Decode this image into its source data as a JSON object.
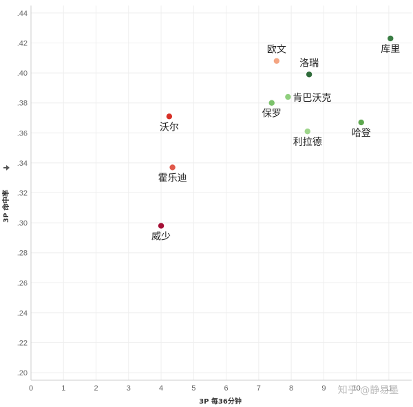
{
  "chart_data": {
    "type": "scatter",
    "xlabel": "3P 每36分钟",
    "ylabel": "3P 命中率",
    "xlim": [
      0,
      11.7
    ],
    "ylim": [
      0.195,
      0.445
    ],
    "x_ticks": [
      0,
      1,
      2,
      3,
      4,
      5,
      6,
      7,
      8,
      9,
      10,
      11
    ],
    "x_tick_labels": [
      "0",
      "1",
      "2",
      "3",
      "4",
      "5",
      "6",
      "7",
      "8",
      "9",
      "10",
      "11"
    ],
    "y_ticks": [
      0.2,
      0.22,
      0.24,
      0.26,
      0.28,
      0.3,
      0.32,
      0.34,
      0.36,
      0.38,
      0.4,
      0.42,
      0.44
    ],
    "y_tick_labels": [
      ".20",
      ".22",
      ".24",
      ".26",
      ".28",
      ".30",
      ".32",
      ".34",
      ".36",
      ".38",
      ".40",
      ".42",
      ".44"
    ],
    "grid": true,
    "points": [
      {
        "label": "库里",
        "x": 11.05,
        "y": 0.423,
        "color": "#3a7d44",
        "label_pos": "below"
      },
      {
        "label": "欧文",
        "x": 7.55,
        "y": 0.408,
        "color": "#f4a582",
        "label_pos": "above"
      },
      {
        "label": "洛瑞",
        "x": 8.55,
        "y": 0.399,
        "color": "#2f6b3a",
        "label_pos": "above"
      },
      {
        "label": "肯巴沃克",
        "x": 7.9,
        "y": 0.384,
        "color": "#8fcf7e",
        "label_pos": "right"
      },
      {
        "label": "保罗",
        "x": 7.4,
        "y": 0.38,
        "color": "#7cc26c",
        "label_pos": "below"
      },
      {
        "label": "哈登",
        "x": 10.15,
        "y": 0.367,
        "color": "#5ea84f",
        "label_pos": "below"
      },
      {
        "label": "利拉德",
        "x": 8.5,
        "y": 0.361,
        "color": "#9ed58b",
        "label_pos": "below"
      },
      {
        "label": "沃尔",
        "x": 4.25,
        "y": 0.371,
        "color": "#d73027",
        "label_pos": "below"
      },
      {
        "label": "霍乐迪",
        "x": 4.35,
        "y": 0.337,
        "color": "#e0584a",
        "label_pos": "below"
      },
      {
        "label": "威少",
        "x": 4.0,
        "y": 0.298,
        "color": "#a50f35",
        "label_pos": "below"
      }
    ]
  },
  "watermark": "知乎 @静易墨",
  "ylabel_icon": "sort-icon"
}
